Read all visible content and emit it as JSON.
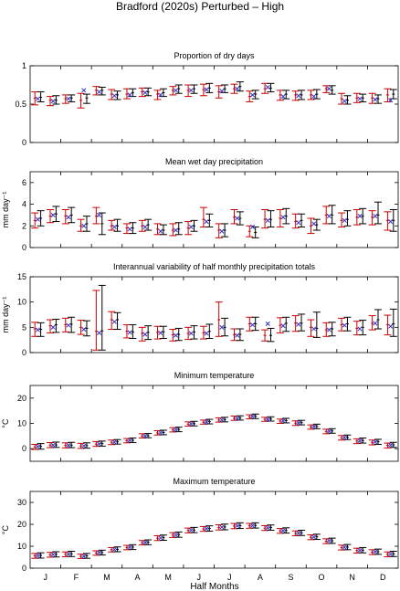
{
  "figure_title": "Bradford (2020s) Perturbed – High",
  "x_axis": {
    "label": "Half Months",
    "months": [
      "J",
      "F",
      "M",
      "A",
      "M",
      "J",
      "J",
      "A",
      "S",
      "O",
      "N",
      "D"
    ]
  },
  "chart_data": [
    {
      "type": "errorbar",
      "title": "Proportion of dry days",
      "ylabel": "",
      "ylim": [
        0,
        1
      ],
      "yticks": [
        0,
        0.5,
        1
      ],
      "series": [
        {
          "name": "",
          "color": "#cc0000",
          "mid": [
            0.58,
            0.55,
            0.57,
            0.55,
            0.68,
            0.63,
            0.63,
            0.66,
            0.63,
            0.68,
            0.68,
            0.69,
            0.66,
            0.7,
            0.6,
            0.7,
            0.62,
            0.62,
            0.62,
            0.7,
            0.57,
            0.58,
            0.58,
            0.62
          ],
          "low": [
            0.49,
            0.48,
            0.51,
            0.45,
            0.62,
            0.56,
            0.57,
            0.6,
            0.56,
            0.62,
            0.6,
            0.61,
            0.58,
            0.64,
            0.53,
            0.64,
            0.55,
            0.55,
            0.56,
            0.65,
            0.5,
            0.52,
            0.51,
            0.53
          ],
          "high": [
            0.66,
            0.6,
            0.62,
            0.64,
            0.73,
            0.69,
            0.7,
            0.71,
            0.68,
            0.73,
            0.75,
            0.76,
            0.74,
            0.76,
            0.67,
            0.77,
            0.68,
            0.67,
            0.68,
            0.74,
            0.64,
            0.64,
            0.64,
            0.7
          ]
        },
        {
          "name": "",
          "color": "#000000",
          "mid": [
            0.59,
            0.55,
            0.58,
            0.58,
            0.68,
            0.62,
            0.65,
            0.66,
            0.65,
            0.7,
            0.7,
            0.71,
            0.7,
            0.73,
            0.63,
            0.71,
            0.63,
            0.62,
            0.63,
            0.68,
            0.55,
            0.58,
            0.57,
            0.63
          ],
          "low": [
            0.53,
            0.5,
            0.53,
            0.51,
            0.62,
            0.56,
            0.6,
            0.61,
            0.6,
            0.64,
            0.64,
            0.65,
            0.65,
            0.67,
            0.57,
            0.66,
            0.57,
            0.56,
            0.57,
            0.63,
            0.5,
            0.53,
            0.51,
            0.57
          ],
          "high": [
            0.66,
            0.61,
            0.62,
            0.63,
            0.72,
            0.67,
            0.7,
            0.71,
            0.7,
            0.75,
            0.75,
            0.77,
            0.75,
            0.79,
            0.68,
            0.77,
            0.68,
            0.68,
            0.69,
            0.74,
            0.61,
            0.63,
            0.62,
            0.69
          ]
        },
        {
          "name": "",
          "color": "#3333cc",
          "mid": [
            0.57,
            0.54,
            0.57,
            0.68,
            0.66,
            0.61,
            0.62,
            0.65,
            0.62,
            0.68,
            0.68,
            0.69,
            0.67,
            0.7,
            0.62,
            0.72,
            0.6,
            0.61,
            0.6,
            0.7,
            0.54,
            0.57,
            0.56,
            0.55
          ]
        }
      ]
    },
    {
      "type": "errorbar",
      "title": "Mean wet day precipitation",
      "ylabel": "mm day⁻¹",
      "ylim": [
        0,
        7
      ],
      "yticks": [
        0,
        2,
        4,
        6
      ],
      "series": [
        {
          "name": "",
          "color": "#cc0000",
          "mid": [
            2.5,
            2.9,
            2.9,
            2.0,
            2.9,
            2.0,
            1.8,
            2.0,
            1.7,
            1.6,
            1.8,
            2.6,
            1.6,
            2.8,
            1.5,
            2.6,
            2.7,
            2.4,
            2.0,
            3.0,
            2.5,
            2.8,
            2.8,
            2.5
          ],
          "low": [
            1.8,
            2.3,
            2.2,
            1.5,
            2.2,
            1.6,
            1.3,
            1.5,
            1.2,
            1.1,
            1.2,
            1.9,
            0.9,
            2.2,
            1.0,
            1.8,
            1.9,
            1.8,
            1.3,
            2.2,
            1.9,
            2.1,
            2.1,
            1.6
          ],
          "high": [
            3.2,
            3.5,
            3.5,
            2.6,
            3.7,
            2.5,
            2.2,
            2.5,
            2.2,
            2.2,
            2.4,
            3.7,
            2.2,
            3.5,
            2.0,
            3.5,
            3.5,
            3.1,
            2.7,
            3.8,
            3.2,
            3.5,
            3.4,
            3.3
          ]
        },
        {
          "name": "",
          "color": "#000000",
          "mid": [
            2.7,
            3.1,
            3.0,
            2.2,
            2.2,
            2.0,
            1.8,
            2.1,
            1.6,
            1.7,
            2.0,
            2.5,
            1.6,
            2.7,
            1.4,
            2.6,
            2.9,
            2.5,
            2.1,
            3.0,
            2.6,
            2.9,
            3.0,
            2.5
          ],
          "low": [
            2.0,
            2.4,
            2.3,
            1.5,
            1.2,
            1.5,
            1.3,
            1.6,
            1.2,
            1.2,
            1.5,
            1.9,
            1.0,
            2.1,
            0.9,
            1.9,
            2.2,
            1.9,
            1.6,
            2.2,
            2.0,
            2.2,
            2.2,
            1.5
          ],
          "high": [
            3.4,
            3.8,
            3.7,
            2.9,
            3.2,
            2.6,
            2.3,
            2.6,
            2.1,
            2.3,
            2.5,
            3.1,
            2.2,
            3.3,
            1.9,
            3.4,
            3.6,
            3.1,
            2.6,
            3.9,
            3.4,
            3.6,
            4.2,
            3.5
          ]
        },
        {
          "name": "",
          "color": "#3333cc",
          "mid": [
            2.6,
            3.0,
            2.8,
            2.0,
            3.0,
            1.9,
            1.7,
            1.9,
            1.5,
            1.6,
            1.9,
            2.4,
            1.5,
            2.7,
            1.9,
            2.5,
            2.8,
            2.3,
            2.2,
            2.9,
            2.5,
            2.9,
            2.9,
            2.4
          ]
        }
      ]
    },
    {
      "type": "errorbar",
      "title": "Interannual variability of half monthly precipitation totals",
      "ylabel": "mm day⁻¹",
      "ylim": [
        0,
        15
      ],
      "yticks": [
        0,
        5,
        10,
        15
      ],
      "series": [
        {
          "name": "",
          "color": "#cc0000",
          "mid": [
            4.7,
            5.3,
            5.5,
            5.0,
            4.2,
            6.5,
            4.2,
            3.8,
            4.0,
            3.5,
            3.8,
            3.9,
            6.5,
            3.5,
            5.7,
            3.4,
            5.4,
            5.8,
            5.0,
            4.5,
            5.5,
            4.8,
            5.8,
            5.5
          ],
          "low": [
            3.2,
            3.9,
            4.1,
            3.6,
            0.5,
            4.6,
            2.9,
            2.3,
            2.7,
            2.3,
            2.6,
            2.7,
            3.2,
            2.4,
            4.3,
            2.3,
            3.9,
            4.2,
            3.2,
            3.2,
            4.3,
            3.5,
            4.5,
            3.5
          ],
          "high": [
            6.0,
            6.5,
            6.8,
            6.4,
            12.3,
            8.1,
            5.5,
            5.0,
            5.2,
            4.6,
            5.0,
            5.2,
            10.0,
            4.7,
            7.0,
            4.5,
            6.9,
            7.3,
            6.5,
            5.9,
            6.8,
            6.2,
            7.3,
            7.4
          ]
        },
        {
          "name": "",
          "color": "#000000",
          "mid": [
            4.6,
            5.5,
            5.6,
            4.8,
            4.3,
            6.5,
            4.1,
            4.0,
            4.1,
            3.6,
            4.1,
            4.2,
            5.0,
            3.6,
            5.7,
            3.4,
            5.8,
            5.8,
            4.8,
            4.7,
            5.7,
            5.0,
            6.5,
            5.7
          ],
          "low": [
            3.2,
            4.0,
            4.0,
            3.3,
            0.5,
            4.6,
            2.8,
            2.6,
            2.8,
            2.4,
            2.7,
            2.8,
            3.3,
            2.4,
            4.4,
            2.2,
            4.2,
            4.3,
            3.0,
            3.3,
            4.3,
            3.5,
            4.7,
            3.2
          ],
          "high": [
            5.9,
            6.6,
            7.0,
            6.3,
            13.3,
            7.9,
            5.5,
            5.3,
            5.2,
            4.8,
            5.3,
            5.6,
            6.8,
            4.7,
            7.0,
            4.8,
            7.0,
            7.6,
            8.0,
            6.0,
            7.0,
            6.4,
            8.5,
            8.6
          ]
        },
        {
          "name": "",
          "color": "#3333cc",
          "mid": [
            4.5,
            5.0,
            5.4,
            4.6,
            3.9,
            6.1,
            4.0,
            3.6,
            3.9,
            3.4,
            3.8,
            3.8,
            5.0,
            3.4,
            5.5,
            5.7,
            5.3,
            5.6,
            4.7,
            4.5,
            5.4,
            4.7,
            5.8,
            5.2
          ]
        }
      ]
    },
    {
      "type": "errorbar",
      "title": "Minimum temperature",
      "ylabel": "°C",
      "ylim": [
        -5,
        25
      ],
      "yticks": [
        0,
        10,
        20
      ],
      "series": [
        {
          "name": "",
          "color": "#cc0000",
          "mid": [
            0.7,
            1.4,
            1.3,
            1.1,
            1.8,
            2.5,
            3.1,
            5.0,
            6.2,
            7.4,
            9.7,
            10.5,
            11.3,
            12.0,
            12.6,
            11.6,
            10.9,
            10.1,
            8.6,
            6.8,
            4.3,
            3.0,
            2.5,
            1.3
          ],
          "low": [
            -0.3,
            0.4,
            0.3,
            0.1,
            0.9,
            1.6,
            2.3,
            4.2,
            5.4,
            6.6,
            8.9,
            9.7,
            10.5,
            11.2,
            11.8,
            10.8,
            10.0,
            9.2,
            7.7,
            5.9,
            3.4,
            2.0,
            1.5,
            0.3
          ],
          "high": [
            1.7,
            2.4,
            2.3,
            2.1,
            2.8,
            3.4,
            4.0,
            5.9,
            7.1,
            8.3,
            10.6,
            11.3,
            12.2,
            12.9,
            13.4,
            12.4,
            11.7,
            11.0,
            9.4,
            7.7,
            5.2,
            3.9,
            3.4,
            2.2
          ]
        },
        {
          "name": "",
          "color": "#000000",
          "mid": [
            0.9,
            1.5,
            1.4,
            1.2,
            2.0,
            2.7,
            3.3,
            5.1,
            6.4,
            7.6,
            9.9,
            10.7,
            11.5,
            12.1,
            12.8,
            11.7,
            11.1,
            10.3,
            8.8,
            7.0,
            4.5,
            3.2,
            2.7,
            1.5
          ],
          "low": [
            -0.2,
            0.5,
            0.4,
            0.2,
            1.0,
            1.8,
            2.4,
            4.3,
            5.5,
            6.7,
            9.0,
            9.8,
            10.6,
            11.3,
            11.9,
            10.9,
            10.2,
            9.4,
            7.9,
            6.1,
            3.6,
            2.2,
            1.7,
            0.5
          ],
          "high": [
            2.0,
            2.6,
            2.5,
            2.3,
            3.0,
            3.6,
            4.2,
            6.0,
            7.3,
            8.5,
            10.8,
            11.6,
            12.4,
            13.0,
            13.7,
            12.6,
            12.0,
            11.2,
            9.7,
            7.9,
            5.4,
            4.2,
            3.7,
            2.5
          ]
        },
        {
          "name": "",
          "color": "#3333cc",
          "mid": [
            0.8,
            1.4,
            1.3,
            1.1,
            1.9,
            2.6,
            3.2,
            5.0,
            6.3,
            7.5,
            9.8,
            10.6,
            11.4,
            12.0,
            12.7,
            11.6,
            11.0,
            10.2,
            8.7,
            6.9,
            4.4,
            3.1,
            2.6,
            1.4
          ]
        }
      ]
    },
    {
      "type": "errorbar",
      "title": "Maximum temperature",
      "ylabel": "°C",
      "ylim": [
        0,
        35
      ],
      "yticks": [
        0,
        10,
        20,
        30
      ],
      "series": [
        {
          "name": "",
          "color": "#cc0000",
          "mid": [
            5.6,
            6.1,
            6.3,
            5.4,
            6.9,
            8.4,
            9.4,
            11.6,
            13.7,
            15.1,
            17.2,
            17.9,
            18.6,
            19.2,
            19.3,
            18.3,
            17.0,
            15.9,
            14.1,
            12.3,
            9.4,
            8.0,
            7.3,
            6.3
          ],
          "low": [
            4.5,
            5.0,
            5.2,
            4.4,
            5.9,
            7.4,
            8.4,
            10.6,
            12.6,
            14.0,
            16.1,
            16.8,
            17.4,
            18.0,
            18.2,
            17.2,
            15.9,
            14.8,
            13.0,
            11.2,
            8.3,
            6.9,
            6.2,
            5.2
          ],
          "high": [
            6.7,
            7.2,
            7.4,
            6.4,
            7.9,
            9.4,
            10.4,
            12.6,
            14.8,
            16.2,
            18.3,
            19.0,
            19.8,
            20.4,
            20.4,
            19.4,
            18.1,
            17.0,
            15.2,
            13.4,
            10.5,
            9.1,
            8.4,
            7.4
          ]
        },
        {
          "name": "",
          "color": "#000000",
          "mid": [
            5.8,
            6.3,
            6.5,
            5.6,
            7.1,
            8.6,
            9.6,
            11.8,
            13.9,
            15.3,
            17.4,
            18.1,
            18.8,
            19.4,
            19.5,
            18.5,
            17.2,
            16.1,
            14.3,
            12.5,
            9.6,
            8.2,
            7.5,
            6.5
          ],
          "low": [
            4.6,
            5.1,
            5.3,
            4.5,
            6.0,
            7.5,
            8.5,
            10.7,
            12.7,
            14.1,
            16.2,
            16.9,
            17.5,
            18.1,
            18.3,
            17.3,
            16.0,
            14.9,
            13.1,
            11.3,
            8.4,
            7.0,
            6.3,
            5.3
          ],
          "high": [
            7.0,
            7.5,
            7.7,
            6.7,
            8.2,
            9.7,
            10.7,
            12.9,
            15.1,
            16.5,
            18.6,
            19.3,
            20.1,
            20.7,
            20.7,
            19.7,
            18.4,
            17.3,
            15.5,
            13.7,
            10.8,
            9.4,
            8.7,
            7.7
          ]
        },
        {
          "name": "",
          "color": "#3333cc",
          "mid": [
            5.7,
            6.2,
            6.4,
            5.5,
            7.0,
            8.5,
            9.5,
            11.7,
            13.8,
            15.2,
            17.3,
            18.0,
            18.7,
            19.3,
            19.4,
            18.4,
            17.1,
            16.0,
            14.2,
            12.4,
            9.5,
            8.1,
            7.4,
            6.4
          ]
        }
      ]
    }
  ]
}
